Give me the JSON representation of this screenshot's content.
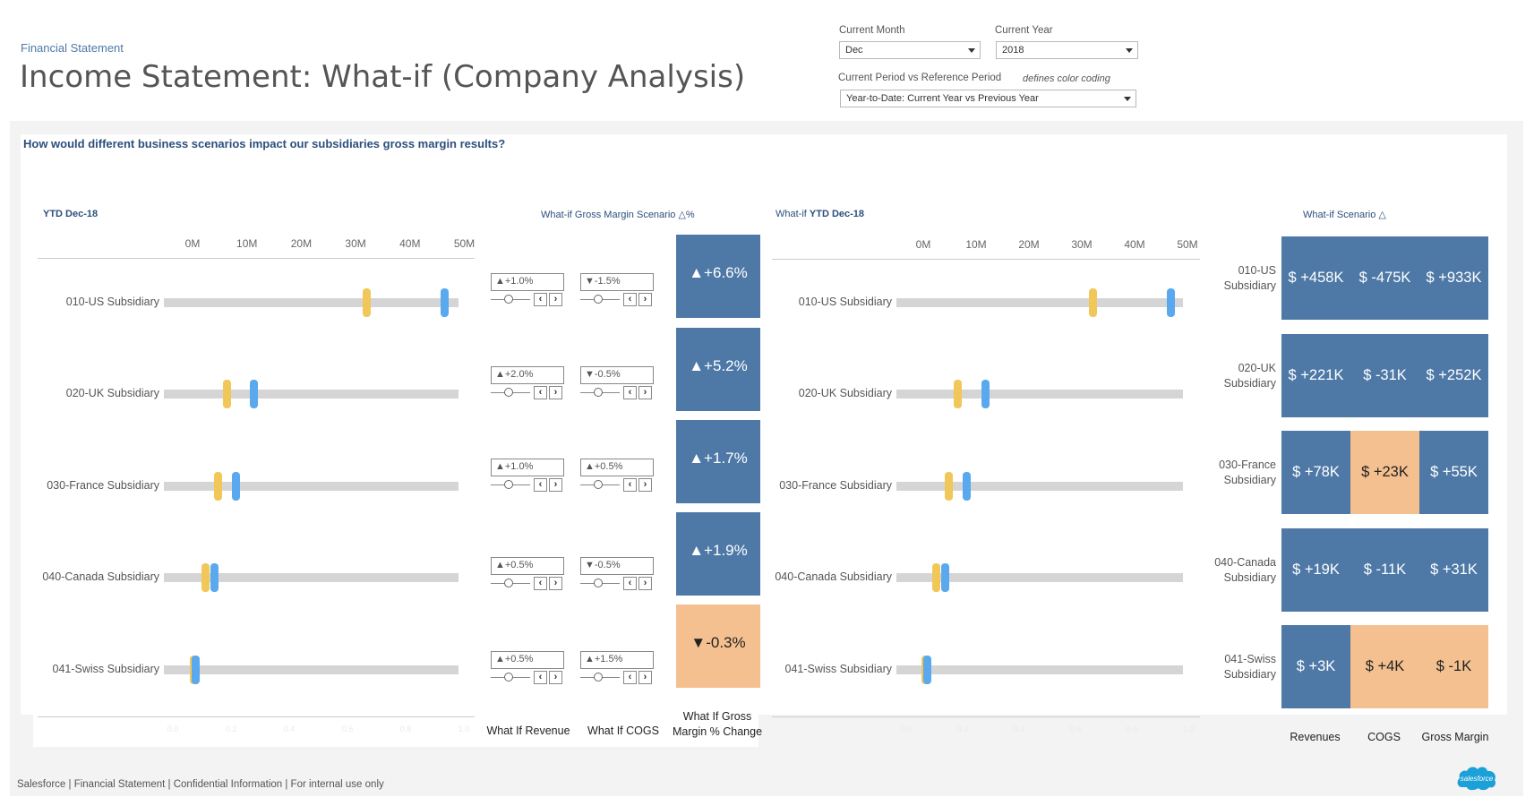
{
  "breadcrumb": "Financial Statement",
  "page_title": "Income Statement: What-if (Company Analysis)",
  "filters": {
    "month_label": "Current Month",
    "month_value": "Dec",
    "year_label": "Current Year",
    "year_value": "2018",
    "period_label": "Current Period vs Reference Period",
    "period_note": "defines color coding",
    "period_value": "Year-to-Date: Current Year vs Previous Year"
  },
  "question": "How would different business scenarios impact our subsidiaries gross margin results?",
  "left_chart": {
    "header": "YTD Dec-18",
    "axis_ticks": [
      "0M",
      "10M",
      "20M",
      "30M",
      "40M",
      "50M"
    ],
    "bottom_ticks": [
      "0.0",
      "0.2",
      "0.4",
      "0.6",
      "0.8",
      "1.0"
    ]
  },
  "middle": {
    "header_prefix": "What-if",
    "header_rest": "Gross Margin Scenario △%",
    "revenue_footer": "What If Revenue",
    "cogs_footer": "What If COGS",
    "gm_footer_line1": "What If Gross",
    "gm_footer_line2": "Margin % Change"
  },
  "right_chart": {
    "header_prefix": "What-if",
    "header_rest": "YTD Dec-18",
    "axis_ticks": [
      "0M",
      "10M",
      "20M",
      "30M",
      "40M",
      "50M"
    ],
    "bottom_ticks": [
      "0.0",
      "0.2",
      "0.4",
      "0.6",
      "0.8",
      "1.0"
    ]
  },
  "scenario": {
    "header_prefix": "What-if",
    "header_rest": "Scenario △",
    "col_revenues": "Revenues",
    "col_cogs": "COGS",
    "col_gm": "Gross Margin"
  },
  "rows": [
    {
      "name": "010-US Subsidiary",
      "name_l1": "010-US",
      "name_l2": "Subsidiary",
      "ytd_yellow_m": 37.2,
      "ytd_blue_m": 51.5,
      "wi_yellow_m": 37.2,
      "wi_blue_m": 51.8,
      "rev_param": "▲+1.0%",
      "rev_level": 0.45,
      "cogs_param": "▼-1.5%",
      "cogs_level": 0.45,
      "gm_change": "▲+6.6%",
      "gm_color": "#4e79a7",
      "rev_delta": "$ +458K",
      "rev_color": "#4e79a7",
      "cogs_delta": "$ -475K",
      "cogs_color": "#4e79a7",
      "gm_delta": "$ +933K",
      "gm_delta_color": "#4e79a7"
    },
    {
      "name": "020-UK Subsidiary",
      "name_l1": "020-UK",
      "name_l2": "Subsidiary",
      "ytd_yellow_m": 11.5,
      "ytd_blue_m": 16.5,
      "wi_yellow_m": 11.5,
      "wi_blue_m": 16.8,
      "rev_param": "▲+2.0%",
      "rev_level": 0.45,
      "cogs_param": "▼-0.5%",
      "cogs_level": 0.45,
      "gm_change": "▲+5.2%",
      "gm_color": "#4e79a7",
      "rev_delta": "$ +221K",
      "rev_color": "#4e79a7",
      "cogs_delta": "$ -31K",
      "cogs_color": "#4e79a7",
      "gm_delta": "$ +252K",
      "gm_delta_color": "#4e79a7"
    },
    {
      "name": "030-France Subsidiary",
      "name_l1": "030-France",
      "name_l2": "Subsidiary",
      "ytd_yellow_m": 9.9,
      "ytd_blue_m": 13.1,
      "wi_yellow_m": 9.9,
      "wi_blue_m": 13.3,
      "rev_param": "▲+1.0%",
      "rev_level": 0.45,
      "cogs_param": "▲+0.5%",
      "cogs_level": 0.45,
      "gm_change": "▲+1.7%",
      "gm_color": "#4e79a7",
      "rev_delta": "$ +78K",
      "rev_color": "#4e79a7",
      "cogs_delta": "$ +23K",
      "cogs_color": "#f4c08f",
      "gm_delta": "$ +55K",
      "gm_delta_color": "#4e79a7"
    },
    {
      "name": "040-Canada Subsidiary",
      "name_l1": "040-Canada",
      "name_l2": "Subsidiary",
      "ytd_yellow_m": 7.6,
      "ytd_blue_m": 9.2,
      "wi_yellow_m": 7.5,
      "wi_blue_m": 9.2,
      "rev_param": "▲+0.5%",
      "rev_level": 0.45,
      "cogs_param": "▼-0.5%",
      "cogs_level": 0.45,
      "gm_change": "▲+1.9%",
      "gm_color": "#4e79a7",
      "rev_delta": "$ +19K",
      "rev_color": "#4e79a7",
      "cogs_delta": "$ -11K",
      "cogs_color": "#4e79a7",
      "gm_delta": "$ +31K",
      "gm_delta_color": "#4e79a7"
    },
    {
      "name": "041-Swiss Subsidiary",
      "name_l1": "041-Swiss",
      "name_l2": "Subsidiary",
      "ytd_yellow_m": 5.4,
      "ytd_blue_m": 5.7,
      "wi_yellow_m": 5.4,
      "wi_blue_m": 5.7,
      "rev_param": "▲+0.5%",
      "rev_level": 0.45,
      "cogs_param": "▲+1.5%",
      "cogs_level": 0.45,
      "gm_change": "▼-0.3%",
      "gm_color": "#f4c08f",
      "rev_delta": "$ +3K",
      "rev_color": "#4e79a7",
      "cogs_delta": "$ +4K",
      "cogs_color": "#f4c08f",
      "gm_delta": "$ -1K",
      "gm_delta_color": "#f4c08f"
    }
  ],
  "footer": "Salesforce | Financial Statement | Confidential Information | For internal use only",
  "logo_text": "salesforce",
  "colors": {
    "accent": "#4e79a7",
    "negative": "#f4c08f",
    "actual": "#f1c75a",
    "reference": "#5aa9ee"
  }
}
